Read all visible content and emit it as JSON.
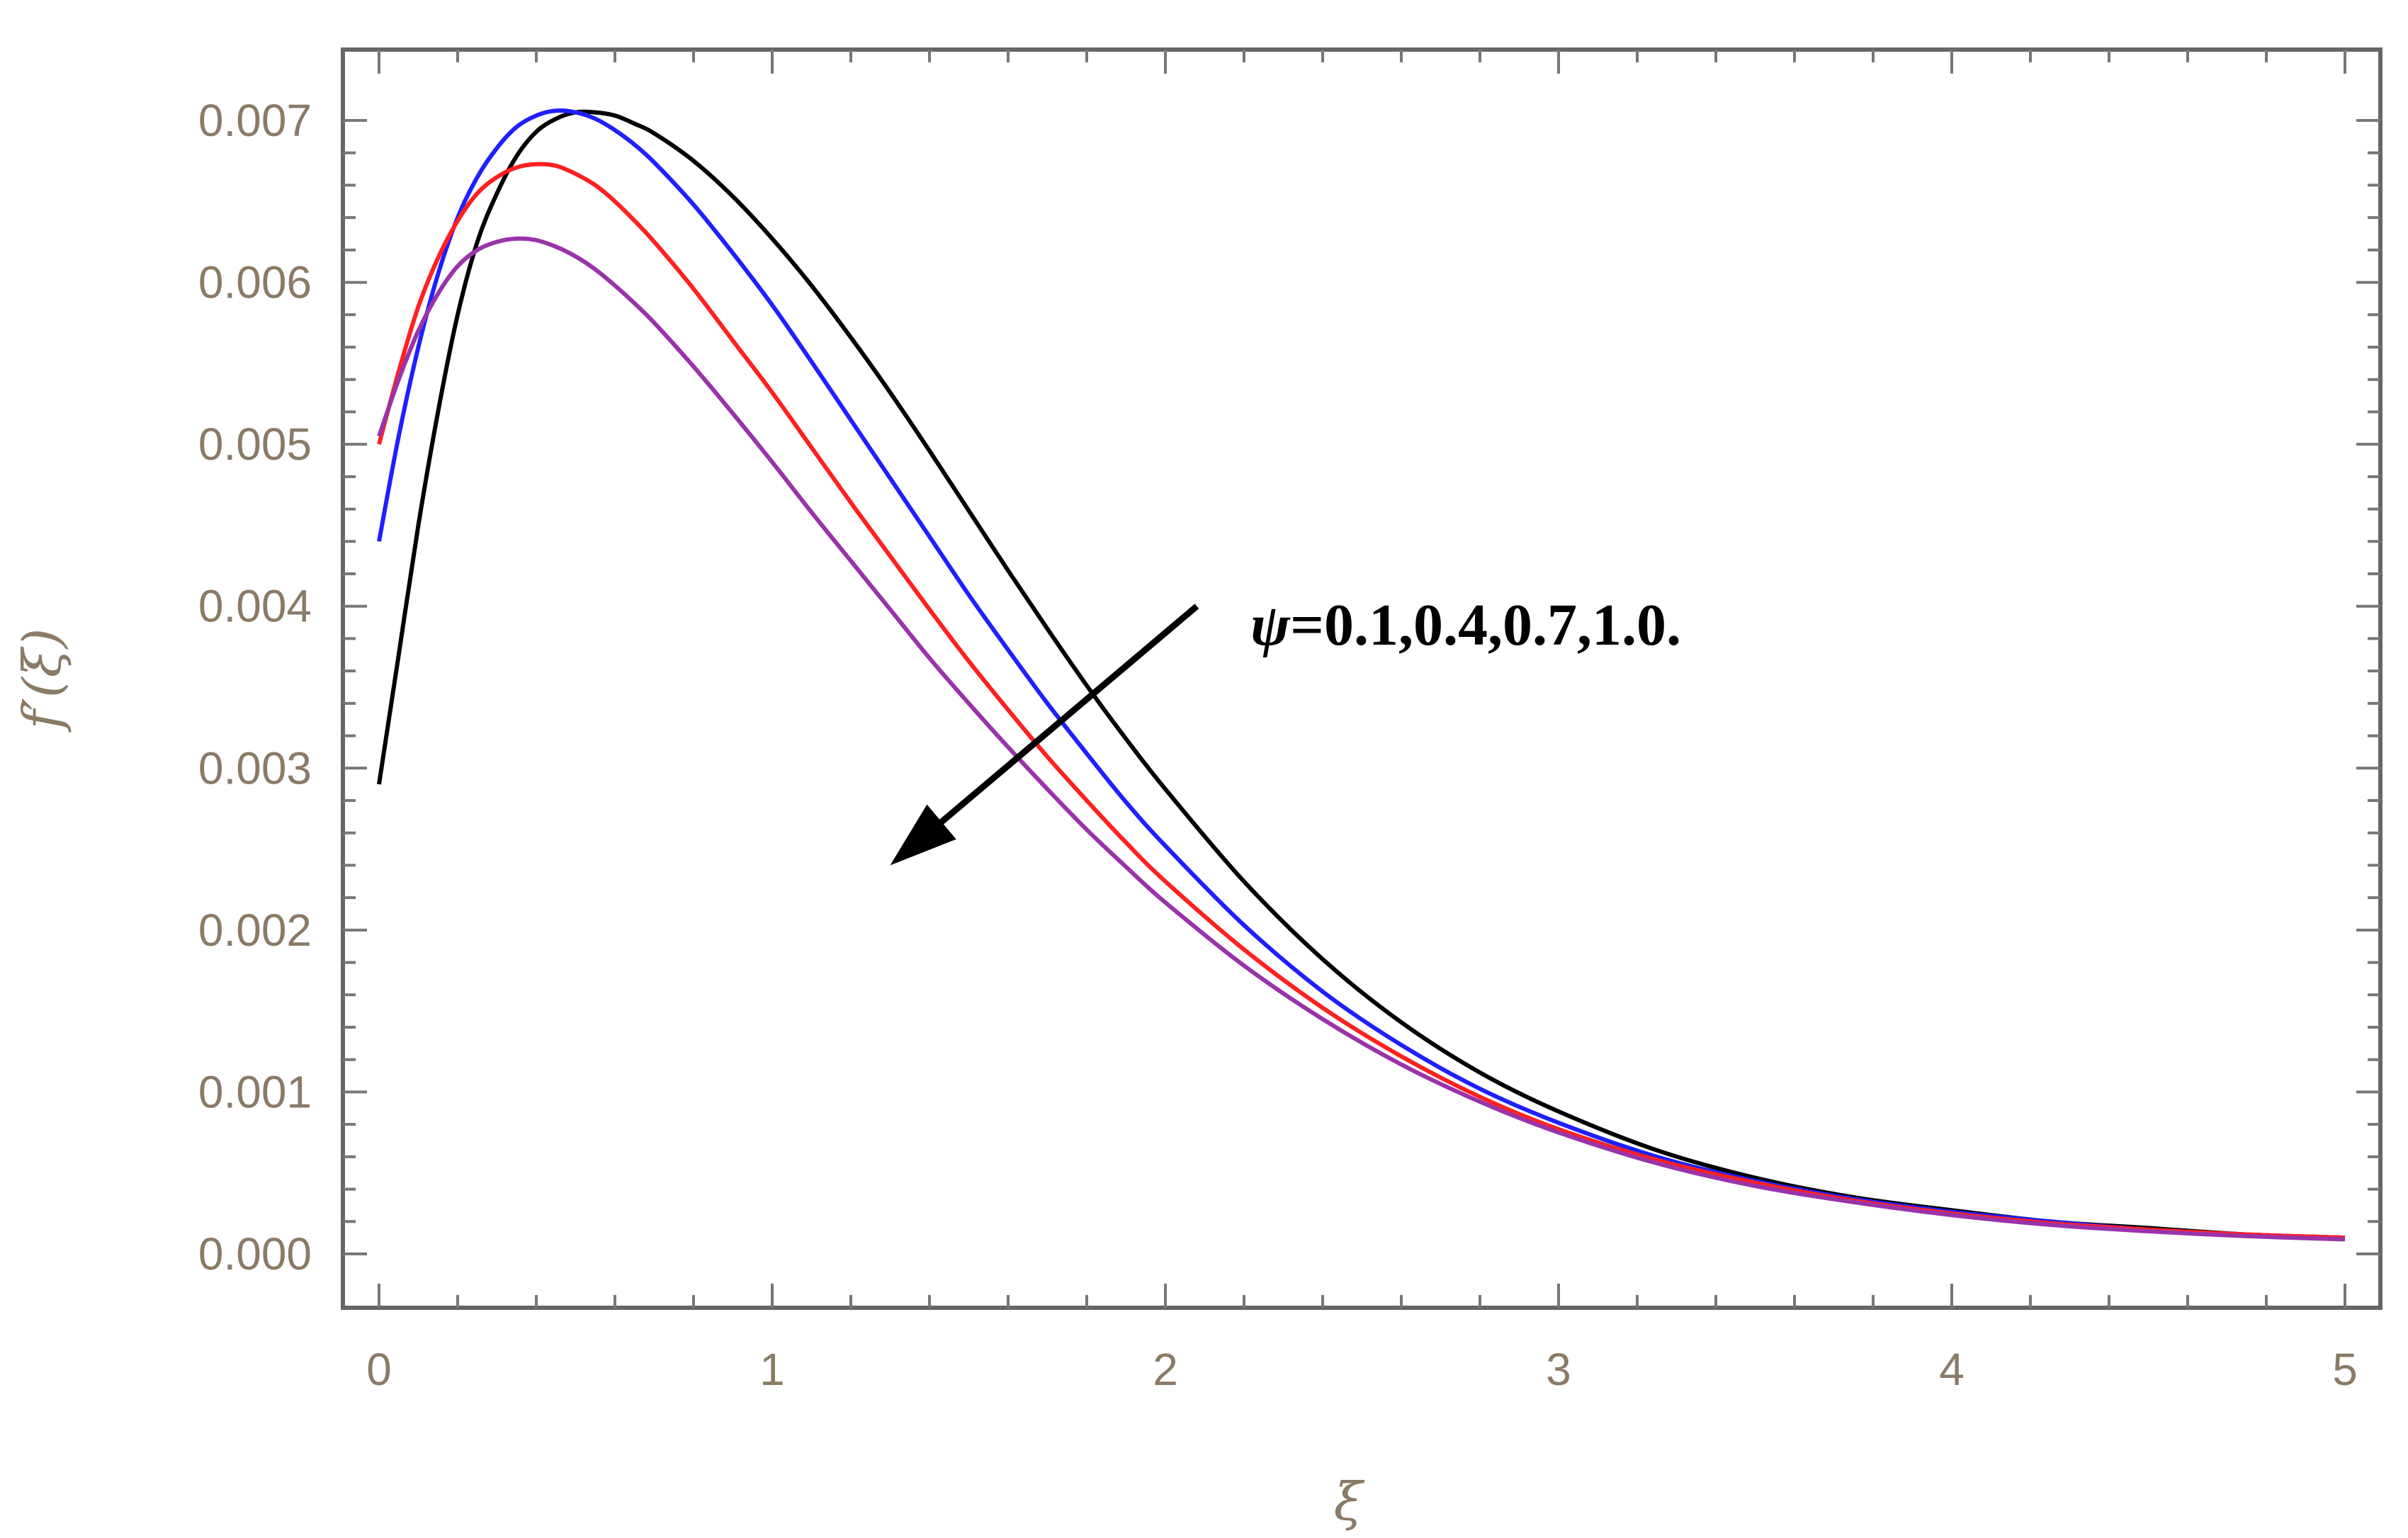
{
  "chart_data": {
    "type": "line",
    "title": "",
    "xlabel": "ξ",
    "ylabel": "f′(ξ)",
    "xlim": [
      0,
      5
    ],
    "ylim": [
      -0.0001,
      0.0074
    ],
    "xticks": [
      0,
      1,
      2,
      3,
      4,
      5
    ],
    "xtick_labels": [
      "0",
      "1",
      "2",
      "3",
      "4",
      "5"
    ],
    "yticks": [
      0.0,
      0.001,
      0.002,
      0.003,
      0.004,
      0.005,
      0.006,
      0.007
    ],
    "ytick_labels": [
      "0.000",
      "0.001",
      "0.002",
      "0.003",
      "0.004",
      "0.005",
      "0.006",
      "0.007"
    ],
    "grid": false,
    "annotation": {
      "symbol": "ψ",
      "text": "=0.1,0.4,0.7,1.0.",
      "arrow_from": [
        2.08,
        0.004
      ],
      "arrow_to": [
        1.3,
        0.0024
      ]
    },
    "series": [
      {
        "color": "#000000",
        "x": [
          0,
          0.05,
          0.1,
          0.15,
          0.2,
          0.25,
          0.3,
          0.35,
          0.4,
          0.45,
          0.5,
          0.55,
          0.6,
          0.65,
          0.7,
          0.8,
          0.9,
          1.0,
          1.1,
          1.2,
          1.3,
          1.4,
          1.5,
          1.6,
          1.7,
          1.8,
          1.9,
          2.0,
          2.2,
          2.4,
          2.6,
          2.8,
          3.0,
          3.25,
          3.5,
          3.75,
          4.0,
          4.25,
          4.5,
          4.75,
          5.0
        ],
        "values": [
          0.0029,
          0.0037,
          0.0045,
          0.0052,
          0.0058,
          0.00625,
          0.00655,
          0.00678,
          0.00693,
          0.00701,
          0.00705,
          0.00705,
          0.00703,
          0.00698,
          0.00692,
          0.00675,
          0.00653,
          0.00627,
          0.00598,
          0.00566,
          0.00532,
          0.00496,
          0.00459,
          0.00422,
          0.00386,
          0.00351,
          0.00318,
          0.00287,
          0.0023,
          0.00182,
          0.00143,
          0.00112,
          0.00088,
          0.00064,
          0.00047,
          0.00035,
          0.00027,
          0.0002,
          0.00016,
          0.00012,
          0.0001
        ]
      },
      {
        "color": "#1f1fff",
        "x": [
          0,
          0.05,
          0.1,
          0.15,
          0.2,
          0.25,
          0.3,
          0.35,
          0.4,
          0.45,
          0.5,
          0.55,
          0.6,
          0.65,
          0.7,
          0.8,
          0.9,
          1.0,
          1.1,
          1.2,
          1.3,
          1.4,
          1.5,
          1.6,
          1.7,
          1.8,
          1.9,
          2.0,
          2.2,
          2.4,
          2.6,
          2.8,
          3.0,
          3.25,
          3.5,
          3.75,
          4.0,
          4.25,
          4.5,
          4.75,
          5.0
        ],
        "values": [
          0.0044,
          0.00505,
          0.0056,
          0.00605,
          0.0064,
          0.00665,
          0.00683,
          0.00696,
          0.00703,
          0.00706,
          0.00705,
          0.00701,
          0.00694,
          0.00685,
          0.00674,
          0.00648,
          0.00618,
          0.00586,
          0.00551,
          0.00515,
          0.00479,
          0.00443,
          0.00407,
          0.00373,
          0.0034,
          0.00309,
          0.00279,
          0.00252,
          0.00203,
          0.00162,
          0.00129,
          0.00102,
          0.00081,
          0.0006,
          0.00045,
          0.00034,
          0.00026,
          0.0002,
          0.00015,
          0.00012,
          0.0001
        ]
      },
      {
        "color": "#ff2020",
        "x": [
          0,
          0.05,
          0.1,
          0.15,
          0.2,
          0.25,
          0.3,
          0.35,
          0.4,
          0.45,
          0.5,
          0.55,
          0.6,
          0.65,
          0.7,
          0.8,
          0.9,
          1.0,
          1.1,
          1.2,
          1.3,
          1.4,
          1.5,
          1.6,
          1.7,
          1.8,
          1.9,
          2.0,
          2.2,
          2.4,
          2.6,
          2.8,
          3.0,
          3.25,
          3.5,
          3.75,
          4.0,
          4.25,
          4.5,
          4.75,
          5.0
        ],
        "values": [
          0.005,
          0.00545,
          0.00585,
          0.00615,
          0.00638,
          0.00655,
          0.00665,
          0.00671,
          0.00673,
          0.00672,
          0.00667,
          0.0066,
          0.0065,
          0.00638,
          0.00625,
          0.00596,
          0.00564,
          0.00532,
          0.00498,
          0.00464,
          0.00431,
          0.00398,
          0.00366,
          0.00336,
          0.00307,
          0.0028,
          0.00254,
          0.0023,
          0.00188,
          0.00152,
          0.00122,
          0.00097,
          0.00077,
          0.00058,
          0.00044,
          0.00033,
          0.00025,
          0.00019,
          0.00015,
          0.00012,
          0.0001
        ]
      },
      {
        "color": "#9933aa",
        "x": [
          0,
          0.05,
          0.1,
          0.15,
          0.2,
          0.25,
          0.3,
          0.35,
          0.4,
          0.45,
          0.5,
          0.55,
          0.6,
          0.65,
          0.7,
          0.8,
          0.9,
          1.0,
          1.1,
          1.2,
          1.3,
          1.4,
          1.5,
          1.6,
          1.7,
          1.8,
          1.9,
          2.0,
          2.2,
          2.4,
          2.6,
          2.8,
          3.0,
          3.25,
          3.5,
          3.75,
          4.0,
          4.25,
          4.5,
          4.75,
          5.0
        ],
        "values": [
          0.00505,
          0.0054,
          0.0057,
          0.00593,
          0.0061,
          0.0062,
          0.00625,
          0.00627,
          0.00626,
          0.00622,
          0.00616,
          0.00608,
          0.00598,
          0.00587,
          0.00575,
          0.00548,
          0.00519,
          0.00489,
          0.00458,
          0.00428,
          0.00398,
          0.00368,
          0.0034,
          0.00313,
          0.00287,
          0.00262,
          0.00239,
          0.00217,
          0.00178,
          0.00145,
          0.00117,
          0.00094,
          0.00075,
          0.00056,
          0.00042,
          0.00032,
          0.00024,
          0.00018,
          0.00014,
          0.00011,
          9e-05
        ]
      }
    ]
  }
}
